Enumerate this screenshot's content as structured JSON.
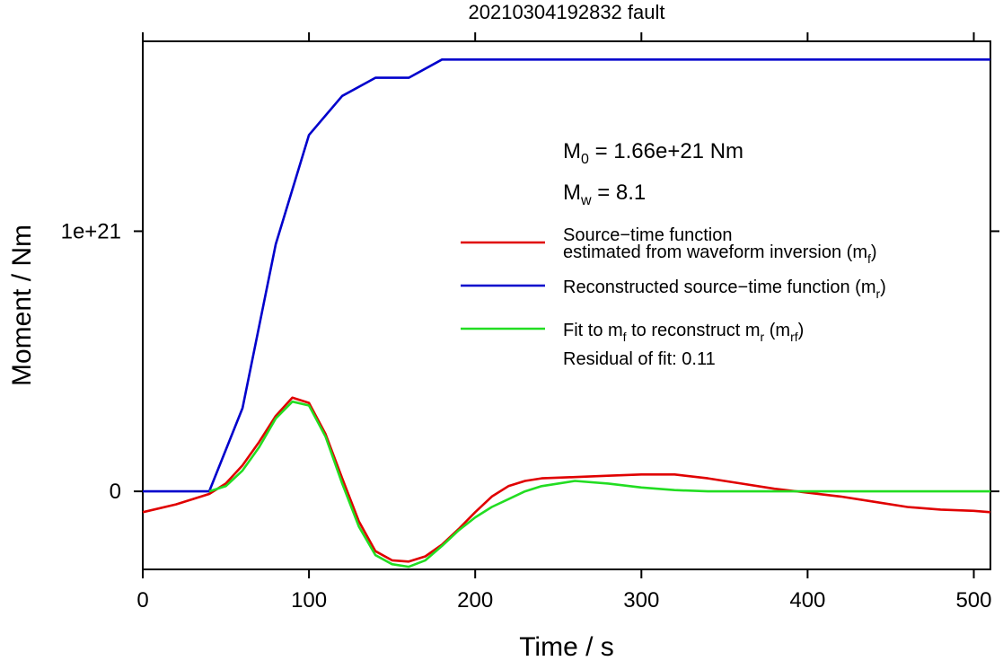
{
  "chart_data": {
    "type": "line",
    "title": "20210304192832 fault",
    "xlabel": "Time / s",
    "ylabel": "Moment / Nm",
    "xlim": [
      0,
      510
    ],
    "ylim": [
      -3e+20,
      1.73e+21
    ],
    "x_ticks": [
      0,
      100,
      200,
      300,
      400,
      500
    ],
    "x_tick_labels": [
      "0",
      "100",
      "200",
      "300",
      "400",
      "500"
    ],
    "y_ticks": [
      0,
      1e+21
    ],
    "y_tick_labels": [
      "0",
      "1e+21"
    ],
    "grid": false,
    "legend_position": "right",
    "annotations": {
      "m0": {
        "sym": "M",
        "sub": "0",
        "text": " = 1.66e+21 Nm"
      },
      "mw": {
        "sym": "M",
        "sub": "w",
        "text": " = 8.1"
      },
      "residual": "Residual of fit: 0.11"
    },
    "legend": [
      {
        "lines": [
          "Source−time function",
          "estimated from waveform inversion (m",
          "f",
          ")"
        ],
        "color": "#e00000"
      },
      {
        "lines": [
          "Reconstructed source−time function (m",
          "r",
          ")"
        ],
        "color": "#0000cc"
      },
      {
        "lines": [
          "Fit to m",
          "f",
          " to reconstruct m",
          "r",
          " (m",
          "rf",
          ")"
        ],
        "color": "#22dd22"
      }
    ],
    "series": [
      {
        "color": "#0000cc",
        "x": [
          0,
          20,
          40,
          60,
          80,
          100,
          120,
          140,
          160,
          180,
          200,
          250,
          300,
          350,
          400,
          450,
          510
        ],
        "y": [
          0,
          0,
          0,
          3.2e+20,
          9.5e+20,
          1.37e+21,
          1.52e+21,
          1.59e+21,
          1.59e+21,
          1.66e+21,
          1.66e+21,
          1.66e+21,
          1.66e+21,
          1.66e+21,
          1.66e+21,
          1.66e+21,
          1.66e+21
        ]
      },
      {
        "color": "#e00000",
        "x": [
          0,
          20,
          40,
          50,
          60,
          70,
          80,
          90,
          100,
          110,
          120,
          130,
          140,
          150,
          160,
          170,
          180,
          190,
          200,
          210,
          220,
          230,
          240,
          260,
          280,
          300,
          320,
          340,
          360,
          380,
          400,
          420,
          440,
          460,
          480,
          500,
          510
        ],
        "y": [
          -8e+19,
          -5e+19,
          -1e+19,
          3e+19,
          1e+20,
          1.9e+20,
          2.9e+20,
          3.6e+20,
          3.4e+20,
          2.2e+20,
          5e+19,
          -1.15e+20,
          -2.3e+20,
          -2.65e+20,
          -2.7e+20,
          -2.5e+20,
          -2.05e+20,
          -1.45e+20,
          -8e+19,
          -2e+19,
          2e+19,
          4e+19,
          5e+19,
          5.5e+19,
          6e+19,
          6.5e+19,
          6.5e+19,
          5e+19,
          3e+19,
          1e+19,
          -5e+18,
          -2e+19,
          -4e+19,
          -6e+19,
          -7e+19,
          -7.5e+19,
          -8e+19
        ]
      },
      {
        "color": "#22dd22",
        "x": [
          40,
          50,
          60,
          70,
          80,
          90,
          100,
          110,
          120,
          130,
          140,
          150,
          160,
          170,
          180,
          190,
          200,
          210,
          220,
          230,
          240,
          260,
          280,
          300,
          320,
          340,
          360,
          380,
          400,
          450,
          510
        ],
        "y": [
          0,
          2e+19,
          8e+19,
          1.7e+20,
          2.8e+20,
          3.45e+20,
          3.3e+20,
          2.1e+20,
          3e+19,
          -1.35e+20,
          -2.45e+20,
          -2.8e+20,
          -2.9e+20,
          -2.65e+20,
          -2.1e+20,
          -1.5e+20,
          -1e+20,
          -6e+19,
          -3e+19,
          0,
          2e+19,
          4e+19,
          3e+19,
          1.5e+19,
          5e+18,
          0,
          0,
          0,
          0,
          0,
          0
        ]
      }
    ]
  }
}
